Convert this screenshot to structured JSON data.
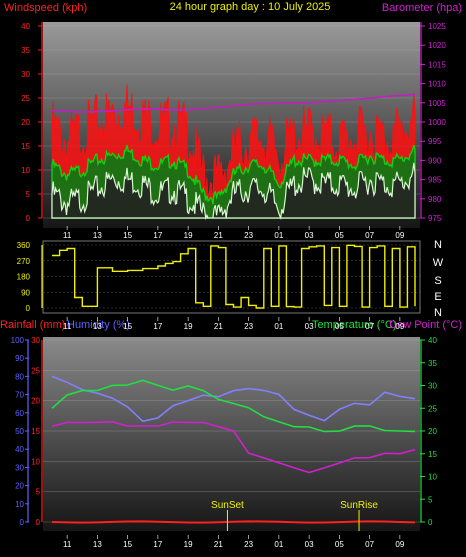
{
  "header": {
    "windspeed_label": "Windspeed (kph)",
    "title": "24 hour graph day : 10 July 2025",
    "barometer_label": "Barometer (hpa)"
  },
  "direction_labels": [
    "N",
    "W",
    "S",
    "E",
    "N"
  ],
  "bottom_header": {
    "rainfall_label": "Rainfall (mm)",
    "humidity_label": "Humidity (%)",
    "temperature_label": "Temperature (°C)",
    "dewpoint_label": "Dew Point (°C)"
  },
  "markers": {
    "sunset": "SunSet",
    "sunrise": "SunRise"
  },
  "colors": {
    "wind_gust": "#ff1010",
    "wind_avg": "#10d010",
    "wind_low": "#d8f8d0",
    "barometer": "#c020c0",
    "direction": "#f0f000",
    "rain": "#ff2020",
    "humidity": "#8080ff",
    "temperature": "#20e040",
    "dewpoint": "#d020d0",
    "axis_red": "#ff2020",
    "axis_magenta": "#d020d0",
    "axis_yellow": "#f0f000",
    "axis_blue": "#6060ff",
    "axis_green": "#20e040"
  },
  "chart_data": [
    {
      "type": "line",
      "title": "24 hour graph day : 10 July 2025",
      "x_tick_labels": [
        "11",
        "13",
        "15",
        "17",
        "19",
        "21",
        "23",
        "01",
        "03",
        "05",
        "07",
        "09"
      ],
      "left_axis": {
        "label": "Windspeed (kph)",
        "ylim": [
          0,
          40
        ],
        "ticks": [
          "0",
          "5",
          "10",
          "15",
          "20",
          "25",
          "30",
          "35",
          "40"
        ]
      },
      "right_axis": {
        "label": "Barometer (hpa)",
        "ylim": [
          975,
          1025
        ],
        "ticks": [
          "975",
          "980",
          "985",
          "990",
          "995",
          "1000",
          "1005",
          "1010",
          "1015",
          "1020",
          "1025"
        ]
      },
      "x_hours": [
        0,
        1,
        2,
        3,
        4,
        5,
        6,
        7,
        8,
        9,
        10,
        11,
        12,
        13,
        14,
        15,
        16,
        17,
        18,
        19,
        20,
        21,
        22,
        23,
        24
      ],
      "series": [
        {
          "name": "Windspeed (kph)",
          "axis": "left",
          "values": [
            19,
            16,
            18,
            20,
            22,
            23,
            21,
            19,
            20,
            18,
            9,
            8,
            14,
            16,
            17,
            13,
            17,
            18,
            17,
            16,
            17,
            18,
            17,
            18,
            21
          ]
        },
        {
          "name": "average",
          "axis": "left",
          "values": [
            11,
            9,
            10,
            12,
            13,
            14,
            12,
            11,
            12,
            10,
            5,
            4,
            9,
            11,
            11,
            7,
            12,
            12,
            12,
            12,
            11,
            13,
            12,
            12,
            14
          ]
        },
        {
          "name": "low",
          "axis": "left",
          "values": [
            5,
            3,
            4,
            6,
            8,
            8,
            7,
            5,
            6,
            4,
            1,
            0,
            5,
            6,
            6,
            2,
            7,
            8,
            7,
            7,
            6,
            8,
            7,
            7,
            9
          ]
        },
        {
          "name": "Barometer (hpa)",
          "axis": "right",
          "values": [
            1003.0,
            1002.8,
            1002.6,
            1002.7,
            1002.9,
            1003.2,
            1003.4,
            1003.3,
            1003.1,
            1003.2,
            1003.5,
            1003.8,
            1004.2,
            1004.6,
            1004.8,
            1004.9,
            1004.9,
            1005.0,
            1005.3,
            1005.6,
            1005.9,
            1006.2,
            1006.6,
            1006.9,
            1007.2
          ]
        }
      ]
    },
    {
      "type": "line",
      "x_tick_labels": [
        "11",
        "13",
        "15",
        "17",
        "19",
        "21",
        "23",
        "01",
        "03",
        "05",
        "07",
        "09"
      ],
      "left_axis": {
        "ylim": [
          0,
          360
        ],
        "ticks": [
          "0",
          "90",
          "180",
          "270",
          "360"
        ]
      },
      "right_labels": [
        "N",
        "W",
        "S",
        "E",
        "N"
      ],
      "x_hours": [
        0,
        0.5,
        1,
        1.5,
        2,
        3,
        4,
        5,
        6,
        7,
        7.5,
        8,
        8.5,
        9,
        9.5,
        10,
        10.5,
        11,
        11.5,
        12,
        12.5,
        13,
        13.5,
        14,
        14.5,
        15,
        15.5,
        16,
        16.5,
        17,
        17.5,
        18,
        18.5,
        19,
        19.5,
        20,
        20.5,
        21,
        21.5,
        22,
        22.5,
        23,
        23.5,
        24
      ],
      "series": [
        {
          "name": "Wind Direction",
          "values": [
            300,
            330,
            340,
            60,
            10,
            230,
            210,
            215,
            225,
            240,
            255,
            265,
            310,
            340,
            30,
            10,
            355,
            345,
            20,
            5,
            60,
            15,
            0,
            340,
            10,
            355,
            8,
            5,
            340,
            350,
            355,
            15,
            345,
            10,
            358,
            352,
            5,
            345,
            355,
            10,
            340,
            5,
            350,
            10
          ]
        }
      ]
    },
    {
      "type": "line",
      "x_tick_labels": [
        "11",
        "13",
        "15",
        "17",
        "19",
        "21",
        "23",
        "01",
        "03",
        "05",
        "07",
        "09"
      ],
      "axes": [
        {
          "label": "Humidity (%)",
          "ylim": [
            0,
            100
          ],
          "ticks": [
            "0",
            "10",
            "20",
            "30",
            "40",
            "50",
            "60",
            "70",
            "80",
            "90",
            "100"
          ]
        },
        {
          "label": "Rainfall (mm)",
          "ylim": [
            0,
            30
          ],
          "ticks": [
            "0",
            "5",
            "10",
            "15",
            "20",
            "25",
            "30"
          ]
        },
        {
          "label": "Temperature (°C)",
          "ylim": [
            0,
            40
          ],
          "ticks": [
            "0",
            "5",
            "10",
            "15",
            "20",
            "25",
            "30",
            "35",
            "40"
          ]
        },
        {
          "label": "Dew Point (°C)",
          "ylim": [
            0,
            40
          ]
        }
      ],
      "annotations": [
        {
          "text": "SunSet",
          "x_hour": 11.6
        },
        {
          "text": "SunRise",
          "x_hour": 20.3
        }
      ],
      "x_hours": [
        0,
        1,
        2,
        3,
        4,
        5,
        6,
        7,
        8,
        9,
        10,
        11,
        12,
        13,
        14,
        15,
        16,
        17,
        18,
        19,
        20,
        21,
        22,
        23,
        24
      ],
      "series": [
        {
          "name": "Temperature (°C)",
          "axis": "Temperature (°C)",
          "values": [
            25,
            28,
            29,
            29,
            30,
            30,
            31,
            30,
            29,
            30,
            29,
            27,
            26,
            25,
            23,
            22,
            21,
            21,
            20,
            20,
            21,
            21,
            20,
            20,
            20
          ]
        },
        {
          "name": "Humidity (%)",
          "axis": "Humidity (%)",
          "values": [
            80,
            77,
            73,
            71,
            68,
            63,
            55,
            57,
            64,
            67,
            70,
            69,
            72,
            73,
            72,
            70,
            62,
            59,
            56,
            62,
            65,
            64,
            71,
            69,
            68
          ]
        },
        {
          "name": "Dew Point (°C)",
          "axis": "Dew Point (°C)",
          "values": [
            21,
            22,
            22,
            22,
            22,
            21,
            21,
            21,
            22,
            22,
            22,
            21,
            20,
            15,
            14,
            13,
            12,
            11,
            12,
            13,
            14,
            14,
            15,
            15,
            16
          ]
        },
        {
          "name": "Rainfall (mm)",
          "axis": "Rainfall (mm)",
          "values": [
            0,
            0,
            0,
            0,
            0,
            0,
            0,
            0,
            0,
            0,
            0,
            0,
            0,
            0,
            0,
            0,
            0,
            0,
            0,
            0,
            0,
            0,
            0,
            0,
            0
          ]
        }
      ]
    }
  ]
}
